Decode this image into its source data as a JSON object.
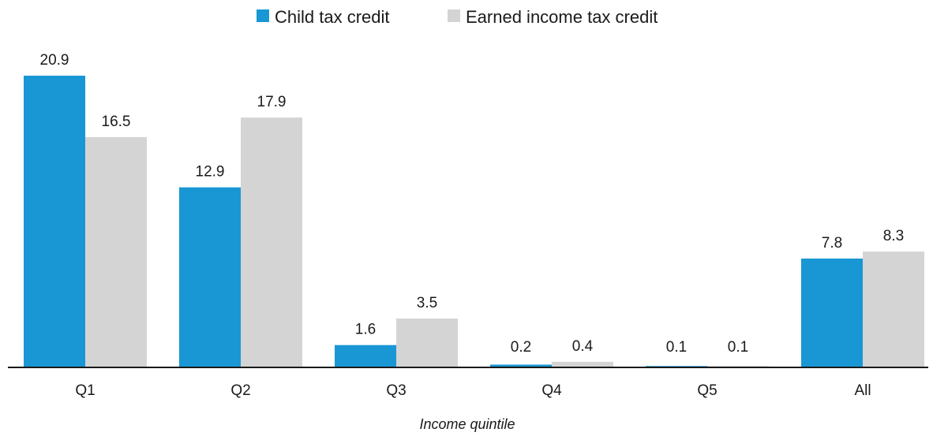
{
  "chart_data": {
    "type": "bar",
    "categories": [
      "Q1",
      "Q2",
      "Q3",
      "Q4",
      "Q5",
      "All"
    ],
    "series": [
      {
        "name": "Child tax credit",
        "color": "#1997d4",
        "values": [
          20.9,
          12.9,
          1.6,
          0.2,
          0.1,
          7.8
        ],
        "value_labels": [
          "20.9",
          "12.9",
          "1.6",
          "0.2",
          "0.1",
          "7.8"
        ]
      },
      {
        "name": "Earned income tax credit",
        "color": "#d4d4d4",
        "values": [
          16.5,
          17.9,
          3.5,
          0.4,
          0.1,
          8.3
        ],
        "value_labels": [
          "16.5",
          "17.9",
          "3.5",
          "0.4",
          "0.1",
          "8.3"
        ]
      }
    ],
    "title": "",
    "xlabel": "Income quintile",
    "ylabel": "",
    "ylim": [
      0,
      20.9
    ],
    "grid": false,
    "legend_position": "top-center",
    "axis_color": "#1a1a1a"
  }
}
